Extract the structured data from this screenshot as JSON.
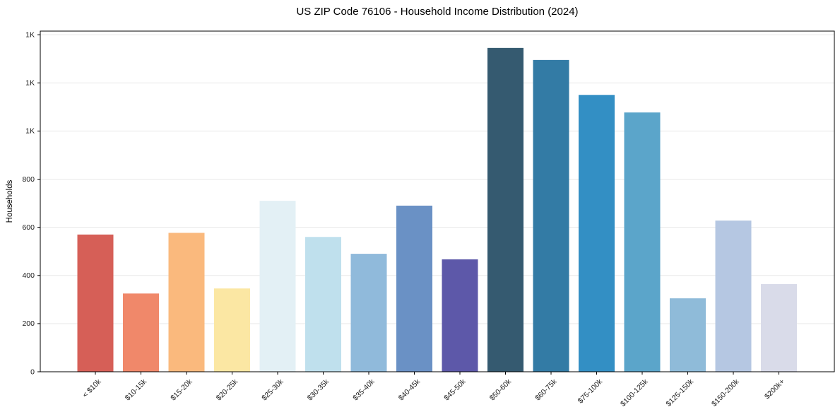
{
  "chart_data": {
    "type": "bar",
    "title": "US ZIP Code 76106 - Household Income Distribution (2024)",
    "xlabel": "",
    "ylabel": "Households",
    "categories": [
      "< $10k",
      "$10-15k",
      "$15-20k",
      "$20-25k",
      "$25-30k",
      "$30-35k",
      "$35-40k",
      "$40-45k",
      "$45-50k",
      "$50-60k",
      "$60-75k",
      "$75-100k",
      "$100-125k",
      "$125-150k",
      "$150-200k",
      "$200k+"
    ],
    "values": [
      570,
      325,
      577,
      346,
      710,
      560,
      490,
      690,
      467,
      1345,
      1295,
      1150,
      1077,
      305,
      628,
      364
    ],
    "bar_colors": [
      "#d65f57",
      "#f0886a",
      "#fab97d",
      "#fbe7a3",
      "#e3f0f5",
      "#bfe0ed",
      "#90badb",
      "#6a91c5",
      "#5d58a9",
      "#355a70",
      "#337ba5",
      "#338fc4",
      "#5ba5ca",
      "#8fbbd9",
      "#b5c7e2",
      "#d9dbe9"
    ],
    "ylim": [
      0,
      1415
    ],
    "yticks": {
      "values": [
        0,
        200,
        400,
        600,
        800,
        1000,
        1200,
        1400
      ],
      "labels": [
        "0",
        "200",
        "400",
        "600",
        "800",
        "1K",
        "1K",
        "1K"
      ]
    },
    "grid": "horizontal",
    "legend": "none",
    "colors": {
      "grid": "#e9e9e9",
      "axis": "#000000",
      "tick_text": "#1a1a1a",
      "background": "#ffffff"
    }
  }
}
